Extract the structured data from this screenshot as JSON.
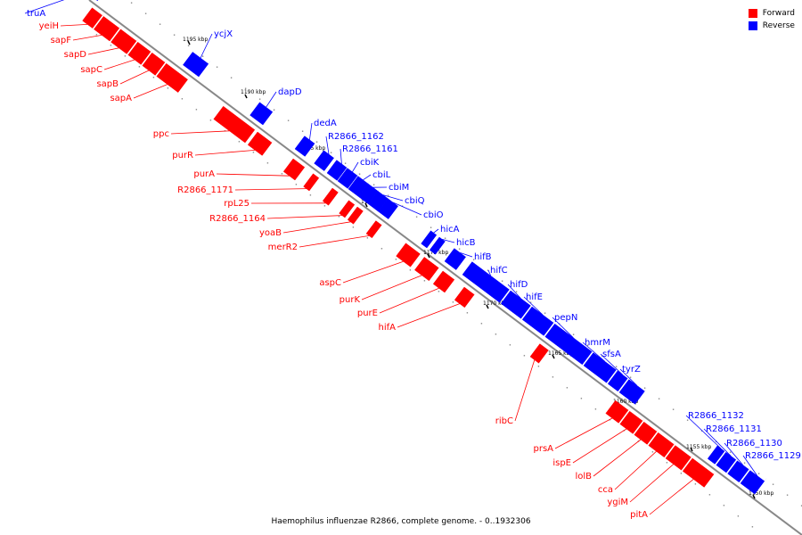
{
  "legend": {
    "forward_label": "Forward",
    "reverse_label": "Reverse",
    "forward_color": "#ff0000",
    "reverse_color": "#0000ff"
  },
  "caption": "Haemophilus influenzae R2866, complete genome. - 0..1932306",
  "axis": {
    "colors": {
      "axis": "#888888"
    },
    "kbp_ticks": [
      "1195 kbp",
      "1190 kbp",
      "1185 kbp",
      "1180 kbp",
      "1175 kbp",
      "1170 kbp",
      "1165 kbp",
      "1160 kbp",
      "1155 kbp",
      "1150 kbp"
    ]
  },
  "genes": [
    {
      "name": "truA",
      "strand": "reverse"
    },
    {
      "name": "yeiH",
      "strand": "forward"
    },
    {
      "name": "sapF",
      "strand": "forward"
    },
    {
      "name": "sapD",
      "strand": "forward"
    },
    {
      "name": "sapC",
      "strand": "forward"
    },
    {
      "name": "sapB",
      "strand": "forward"
    },
    {
      "name": "sapA",
      "strand": "forward"
    },
    {
      "name": "ycjX",
      "strand": "reverse"
    },
    {
      "name": "ppc",
      "strand": "forward"
    },
    {
      "name": "dapD",
      "strand": "reverse"
    },
    {
      "name": "purR",
      "strand": "forward"
    },
    {
      "name": "dedA",
      "strand": "reverse"
    },
    {
      "name": "R2866_1162",
      "strand": "reverse"
    },
    {
      "name": "R2866_1161",
      "strand": "reverse"
    },
    {
      "name": "purA",
      "strand": "forward"
    },
    {
      "name": "cbiK",
      "strand": "reverse"
    },
    {
      "name": "R2866_1171",
      "strand": "forward"
    },
    {
      "name": "cbiL",
      "strand": "reverse"
    },
    {
      "name": "rpL25",
      "strand": "forward"
    },
    {
      "name": "cbiM",
      "strand": "reverse"
    },
    {
      "name": "cbiQ",
      "strand": "reverse"
    },
    {
      "name": "R2866_1164",
      "strand": "forward"
    },
    {
      "name": "cbiO",
      "strand": "reverse"
    },
    {
      "name": "yoaB",
      "strand": "forward"
    },
    {
      "name": "merR2",
      "strand": "forward"
    },
    {
      "name": "hicA",
      "strand": "reverse"
    },
    {
      "name": "hicB",
      "strand": "reverse"
    },
    {
      "name": "hifB",
      "strand": "reverse"
    },
    {
      "name": "hifC",
      "strand": "reverse"
    },
    {
      "name": "aspC",
      "strand": "forward"
    },
    {
      "name": "hifD",
      "strand": "reverse"
    },
    {
      "name": "purK",
      "strand": "forward"
    },
    {
      "name": "hifE",
      "strand": "reverse"
    },
    {
      "name": "purE",
      "strand": "forward"
    },
    {
      "name": "hifA",
      "strand": "forward"
    },
    {
      "name": "pepN",
      "strand": "reverse"
    },
    {
      "name": "hmrM",
      "strand": "reverse"
    },
    {
      "name": "sfsA",
      "strand": "reverse"
    },
    {
      "name": "tyrZ",
      "strand": "reverse"
    },
    {
      "name": "ribC",
      "strand": "forward"
    },
    {
      "name": "R2866_1132",
      "strand": "reverse"
    },
    {
      "name": "R2866_1131",
      "strand": "reverse"
    },
    {
      "name": "R2866_1130",
      "strand": "reverse"
    },
    {
      "name": "R2866_1129",
      "strand": "reverse"
    },
    {
      "name": "prsA",
      "strand": "forward"
    },
    {
      "name": "ispE",
      "strand": "forward"
    },
    {
      "name": "lolB",
      "strand": "forward"
    },
    {
      "name": "cca",
      "strand": "forward"
    },
    {
      "name": "ygiM",
      "strand": "forward"
    },
    {
      "name": "pitA",
      "strand": "forward"
    }
  ]
}
